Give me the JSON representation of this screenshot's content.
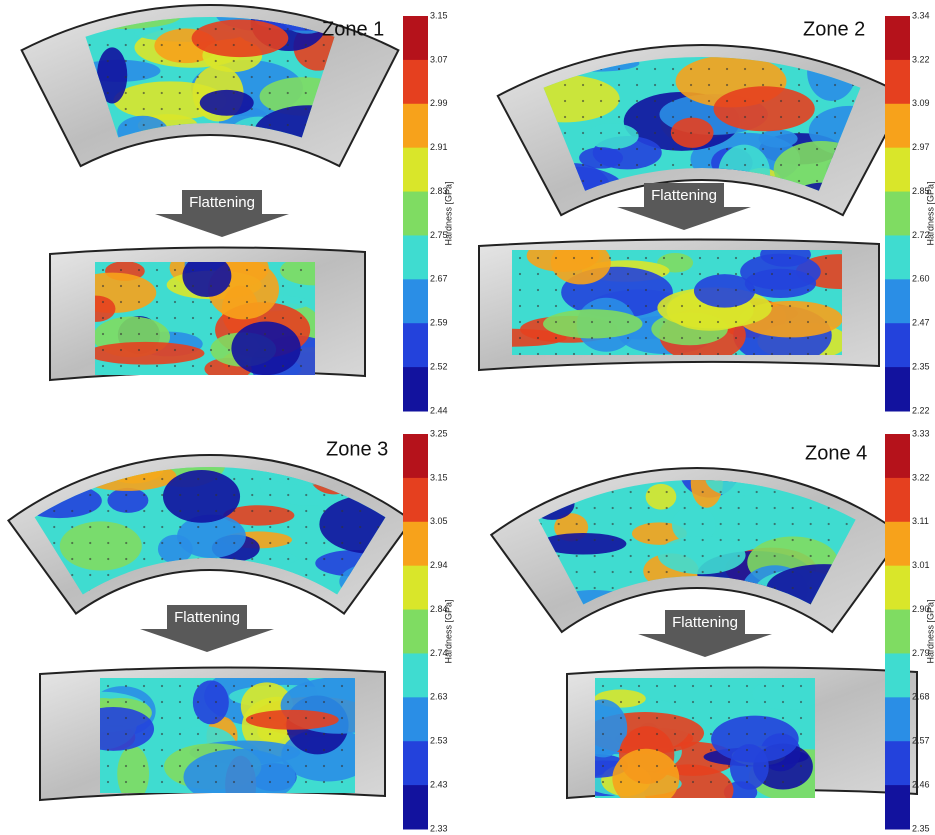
{
  "panels": [
    {
      "title": "Zone 1",
      "arrow_label": "Flattening",
      "colorbar_label": "Hardness [GPa]",
      "colorbar_ticks": [
        "3.15",
        "3.07",
        "2.99",
        "2.91",
        "2.83",
        "2.75",
        "2.67",
        "2.59",
        "2.52",
        "2.44"
      ]
    },
    {
      "title": "Zone 2",
      "arrow_label": "Flattening",
      "colorbar_label": "Hardness [GPa]",
      "colorbar_ticks": [
        "3.34",
        "3.22",
        "3.09",
        "2.97",
        "2.85",
        "2.72",
        "2.60",
        "2.47",
        "2.35",
        "2.22"
      ]
    },
    {
      "title": "Zone 3",
      "arrow_label": "Flattening",
      "colorbar_label": "Hardness [GPa]",
      "colorbar_ticks": [
        "3.25",
        "3.15",
        "3.05",
        "2.94",
        "2.84",
        "2.74",
        "2.63",
        "2.53",
        "2.43",
        "2.33"
      ]
    },
    {
      "title": "Zone 4",
      "arrow_label": "Flattening",
      "colorbar_label": "Hardness [GPa]",
      "colorbar_ticks": [
        "3.33",
        "3.22",
        "3.11",
        "3.01",
        "2.90",
        "2.79",
        "2.68",
        "2.57",
        "2.46",
        "2.35"
      ]
    }
  ]
}
